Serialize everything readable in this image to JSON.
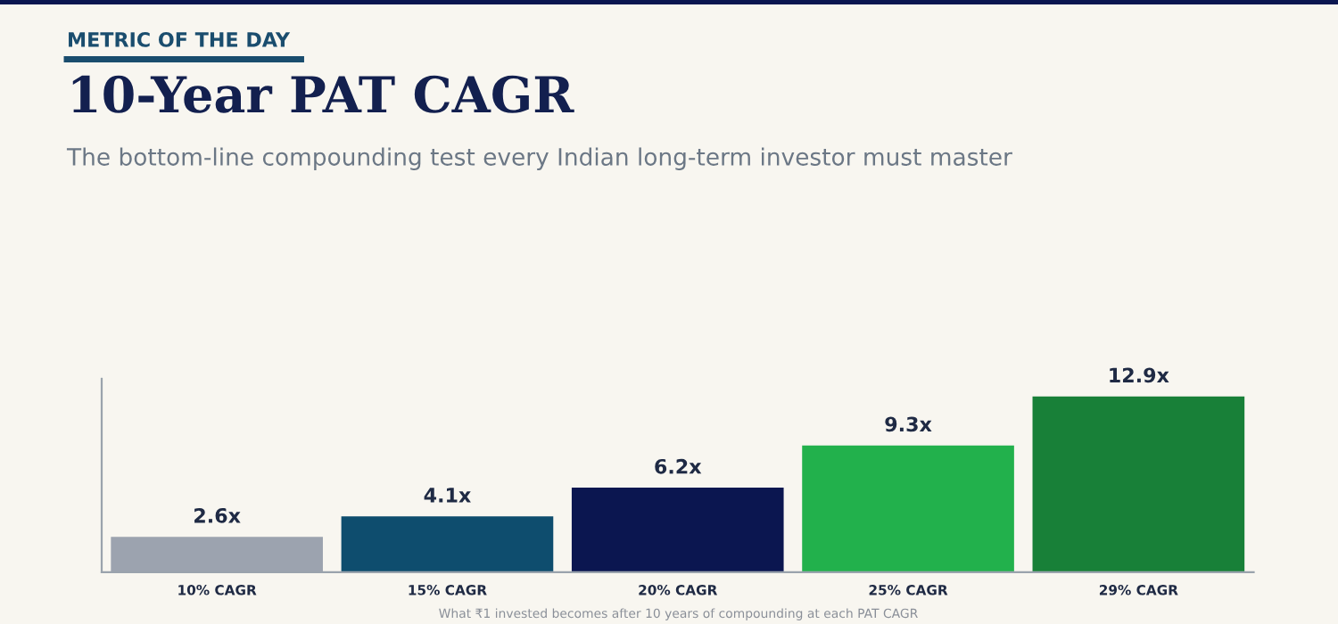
{
  "chart_data": {
    "type": "bar",
    "title": "10-Year PAT CAGR",
    "subtitle": "The bottom-line compounding test every Indian long-term investor must master",
    "annotations": [
      "METRIC OF THE DAY",
      "What ₹1 invested becomes after 10 years of compounding at each PAT CAGR"
    ],
    "categories": [
      "10% CAGR",
      "15% CAGR",
      "20% CAGR",
      "25% CAGR",
      "29% CAGR"
    ],
    "values": [
      2.6,
      4.1,
      6.2,
      9.3,
      12.9
    ],
    "value_labels": [
      "2.6x",
      "4.1x",
      "6.2x",
      "9.3x",
      "12.9x"
    ],
    "colors": [
      "#9ca3af",
      "#0e4d6e",
      "#0b1650",
      "#22b14c",
      "#188038"
    ],
    "tick_labels": "x",
    "grid": false,
    "legend": false
  }
}
